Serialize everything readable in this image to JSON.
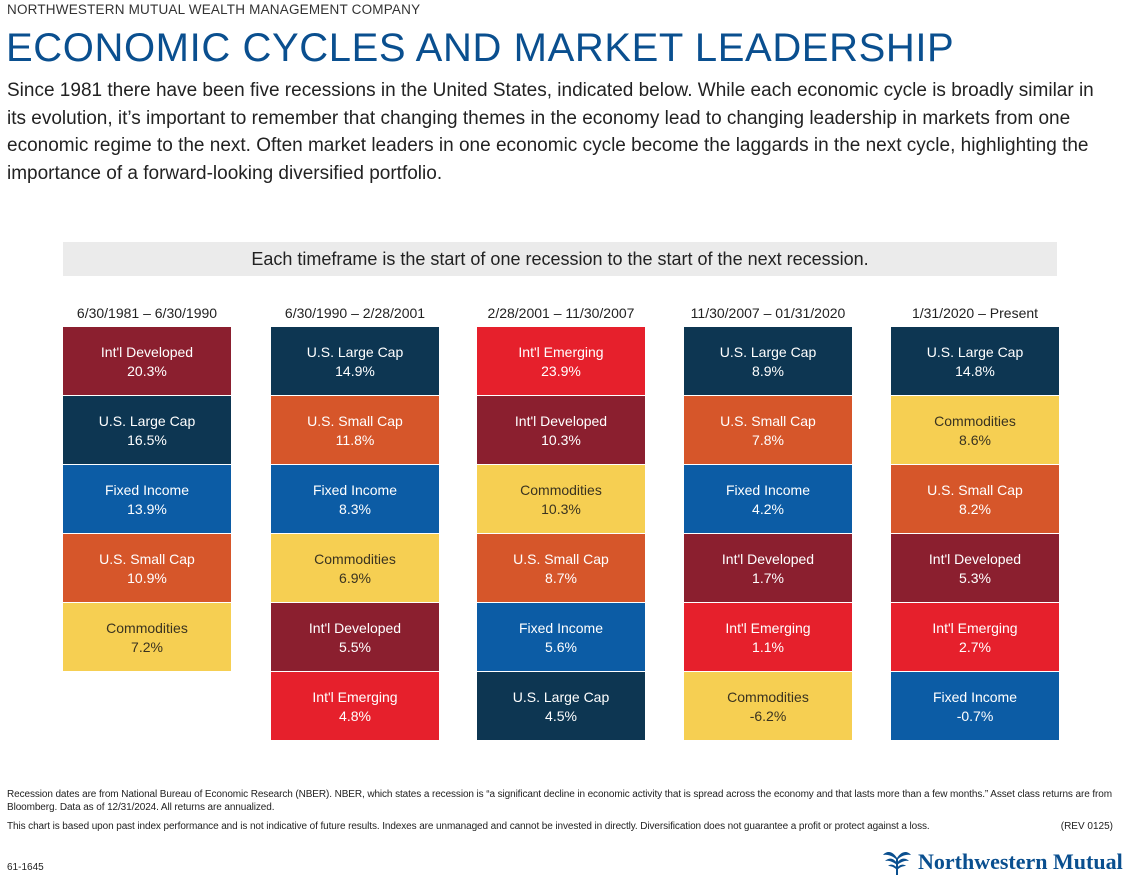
{
  "header": {
    "company": "NORTHWESTERN MUTUAL WEALTH MANAGEMENT COMPANY",
    "title": "ECONOMIC CYCLES AND MARKET LEADERSHIP",
    "intro": "Since 1981 there have been five recessions in the United States, indicated below. While each economic cycle is broadly similar in its evolution, it’s important to remember that changing themes in the economy lead to changing leadership in markets from one economic regime to the next. Often market leaders in one economic cycle become the laggards in the next cycle, highlighting the importance of a forward-looking diversified portfolio."
  },
  "banner": "Each timeframe is the start of one recession to the start of the next recession.",
  "colors": {
    "Int'l Developed": "#8b1f2f",
    "U.S. Large Cap": "#0d3652",
    "Fixed Income": "#0c5ca5",
    "U.S. Small Cap": "#d6562a",
    "Commodities": "#f6cf52",
    "Int'l Emerging": "#e6202c"
  },
  "chart_data": {
    "type": "table",
    "columns": [
      {
        "period": "6/30/1981 – 6/30/1990",
        "rows": [
          {
            "asset": "Int'l Developed",
            "return": "20.3%"
          },
          {
            "asset": "U.S. Large Cap",
            "return": "16.5%"
          },
          {
            "asset": "Fixed Income",
            "return": "13.9%"
          },
          {
            "asset": "U.S. Small Cap",
            "return": "10.9%"
          },
          {
            "asset": "Commodities",
            "return": "7.2%"
          }
        ]
      },
      {
        "period": "6/30/1990 – 2/28/2001",
        "rows": [
          {
            "asset": "U.S. Large Cap",
            "return": "14.9%"
          },
          {
            "asset": "U.S. Small Cap",
            "return": "11.8%"
          },
          {
            "asset": "Fixed Income",
            "return": "8.3%"
          },
          {
            "asset": "Commodities",
            "return": "6.9%"
          },
          {
            "asset": "Int'l Developed",
            "return": "5.5%"
          },
          {
            "asset": "Int'l Emerging",
            "return": "4.8%"
          }
        ]
      },
      {
        "period": "2/28/2001 – 11/30/2007",
        "rows": [
          {
            "asset": "Int'l Emerging",
            "return": "23.9%"
          },
          {
            "asset": "Int'l Developed",
            "return": "10.3%"
          },
          {
            "asset": "Commodities",
            "return": "10.3%"
          },
          {
            "asset": "U.S. Small Cap",
            "return": "8.7%"
          },
          {
            "asset": "Fixed Income",
            "return": "5.6%"
          },
          {
            "asset": "U.S. Large Cap",
            "return": "4.5%"
          }
        ]
      },
      {
        "period": "11/30/2007 – 01/31/2020",
        "rows": [
          {
            "asset": "U.S. Large Cap",
            "return": "8.9%"
          },
          {
            "asset": "U.S. Small Cap",
            "return": "7.8%"
          },
          {
            "asset": "Fixed Income",
            "return": "4.2%"
          },
          {
            "asset": "Int'l Developed",
            "return": "1.7%"
          },
          {
            "asset": "Int'l Emerging",
            "return": "1.1%"
          },
          {
            "asset": "Commodities",
            "return": "-6.2%"
          }
        ]
      },
      {
        "period": "1/31/2020 – Present",
        "rows": [
          {
            "asset": "U.S. Large Cap",
            "return": "14.8%"
          },
          {
            "asset": "Commodities",
            "return": "8.6%"
          },
          {
            "asset": "U.S. Small Cap",
            "return": "8.2%"
          },
          {
            "asset": "Int'l Developed",
            "return": "5.3%"
          },
          {
            "asset": "Int'l Emerging",
            "return": "2.7%"
          },
          {
            "asset": "Fixed Income",
            "return": "-0.7%"
          }
        ]
      }
    ]
  },
  "footer": {
    "note1": "Recession dates are from National Bureau of Economic Research (NBER). NBER, which states a recession is “a significant decline in economic activity that is spread across the economy and that lasts more than a few months.” Asset class returns are from Bloomberg. Data as of 12/31/2024. All returns are annualized.",
    "note2": "This chart is based upon past index performance and is not indicative of future results. Indexes are unmanaged and cannot be invested in directly. Diversification does not guarantee a profit or protect against a loss.",
    "rev": "(REV 0125)",
    "code": "61-1645",
    "logo_text": "Northwestern Mutual"
  }
}
